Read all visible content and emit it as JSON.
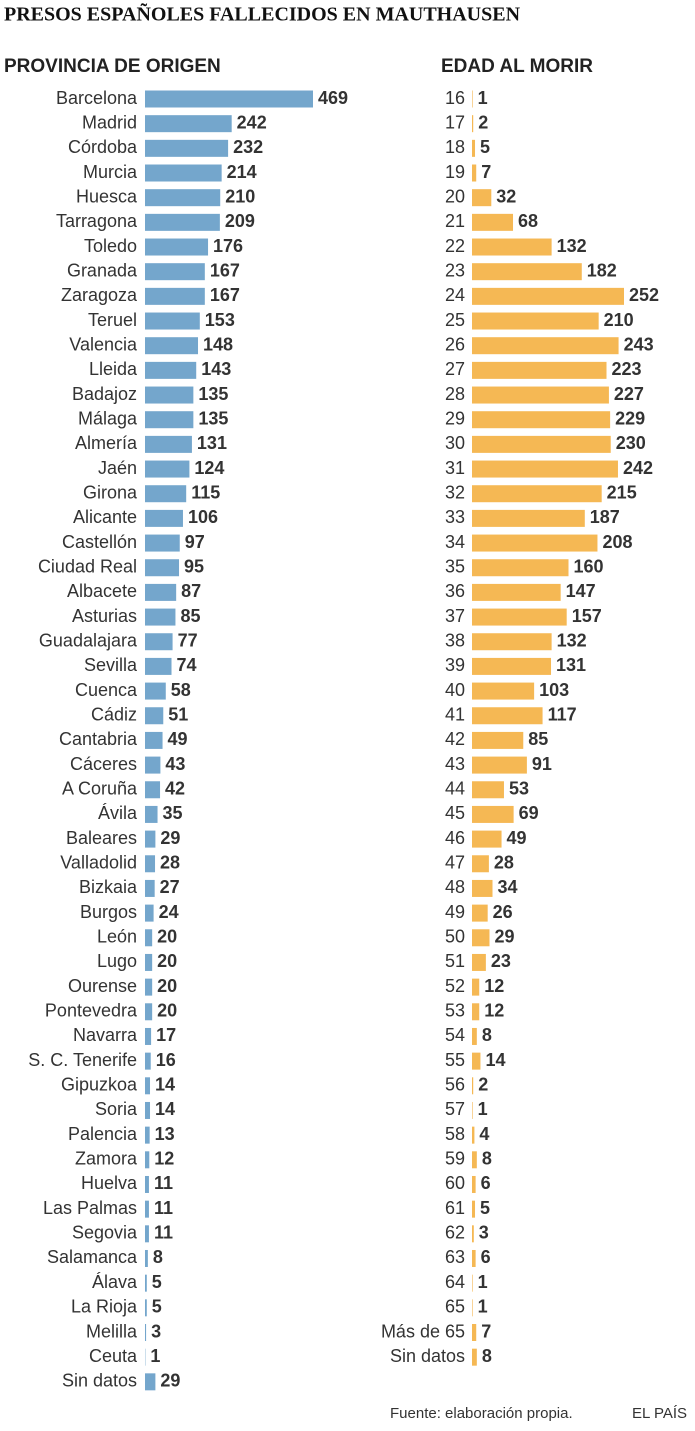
{
  "title": "PRESOS ESPAÑOLES FALLECIDOS EN MAUTHAUSEN",
  "source": "Fuente: elaboración propia.",
  "brand": "EL PAÍS",
  "chart_data": [
    {
      "type": "bar",
      "orientation": "horizontal",
      "title": "PROVINCIA DE ORIGEN",
      "color": "#74a6cc",
      "categories": [
        "Barcelona",
        "Madrid",
        "Córdoba",
        "Murcia",
        "Huesca",
        "Tarragona",
        "Toledo",
        "Granada",
        "Zaragoza",
        "Teruel",
        "Valencia",
        "Lleida",
        "Badajoz",
        "Málaga",
        "Almería",
        "Jaén",
        "Girona",
        "Alicante",
        "Castellón",
        "Ciudad Real",
        "Albacete",
        "Asturias",
        "Guadalajara",
        "Sevilla",
        "Cuenca",
        "Cádiz",
        "Cantabria",
        "Cáceres",
        "A Coruña",
        "Ávila",
        "Baleares",
        "Valladolid",
        "Bizkaia",
        "Burgos",
        "León",
        "Lugo",
        "Ourense",
        "Pontevedra",
        "Navarra",
        "S. C. Tenerife",
        "Gipuzkoa",
        "Soria",
        "Palencia",
        "Zamora",
        "Huelva",
        "Las Palmas",
        "Segovia",
        "Salamanca",
        "Álava",
        "La Rioja",
        "Melilla",
        "Ceuta",
        "Sin datos"
      ],
      "values": [
        469,
        242,
        232,
        214,
        210,
        209,
        176,
        167,
        167,
        153,
        148,
        143,
        135,
        135,
        131,
        124,
        115,
        106,
        97,
        95,
        87,
        85,
        77,
        74,
        58,
        51,
        49,
        43,
        42,
        35,
        29,
        28,
        27,
        24,
        20,
        20,
        20,
        20,
        17,
        16,
        14,
        14,
        13,
        12,
        11,
        11,
        11,
        8,
        5,
        5,
        3,
        1,
        29
      ]
    },
    {
      "type": "bar",
      "orientation": "horizontal",
      "title": "EDAD AL MORIR",
      "color": "#f5b854",
      "categories": [
        "16",
        "17",
        "18",
        "19",
        "20",
        "21",
        "22",
        "23",
        "24",
        "25",
        "26",
        "27",
        "28",
        "29",
        "30",
        "31",
        "32",
        "33",
        "34",
        "35",
        "36",
        "37",
        "38",
        "39",
        "40",
        "41",
        "42",
        "43",
        "44",
        "45",
        "46",
        "47",
        "48",
        "49",
        "50",
        "51",
        "52",
        "53",
        "54",
        "55",
        "56",
        "57",
        "58",
        "59",
        "60",
        "61",
        "62",
        "63",
        "64",
        "65",
        "Más de 65",
        "Sin datos"
      ],
      "values": [
        1,
        2,
        5,
        7,
        32,
        68,
        132,
        182,
        252,
        210,
        243,
        223,
        227,
        229,
        230,
        242,
        215,
        187,
        208,
        160,
        147,
        157,
        132,
        131,
        103,
        117,
        85,
        91,
        53,
        69,
        49,
        28,
        34,
        26,
        29,
        23,
        12,
        12,
        8,
        14,
        2,
        1,
        4,
        8,
        6,
        5,
        3,
        6,
        1,
        1,
        7,
        8
      ]
    }
  ]
}
